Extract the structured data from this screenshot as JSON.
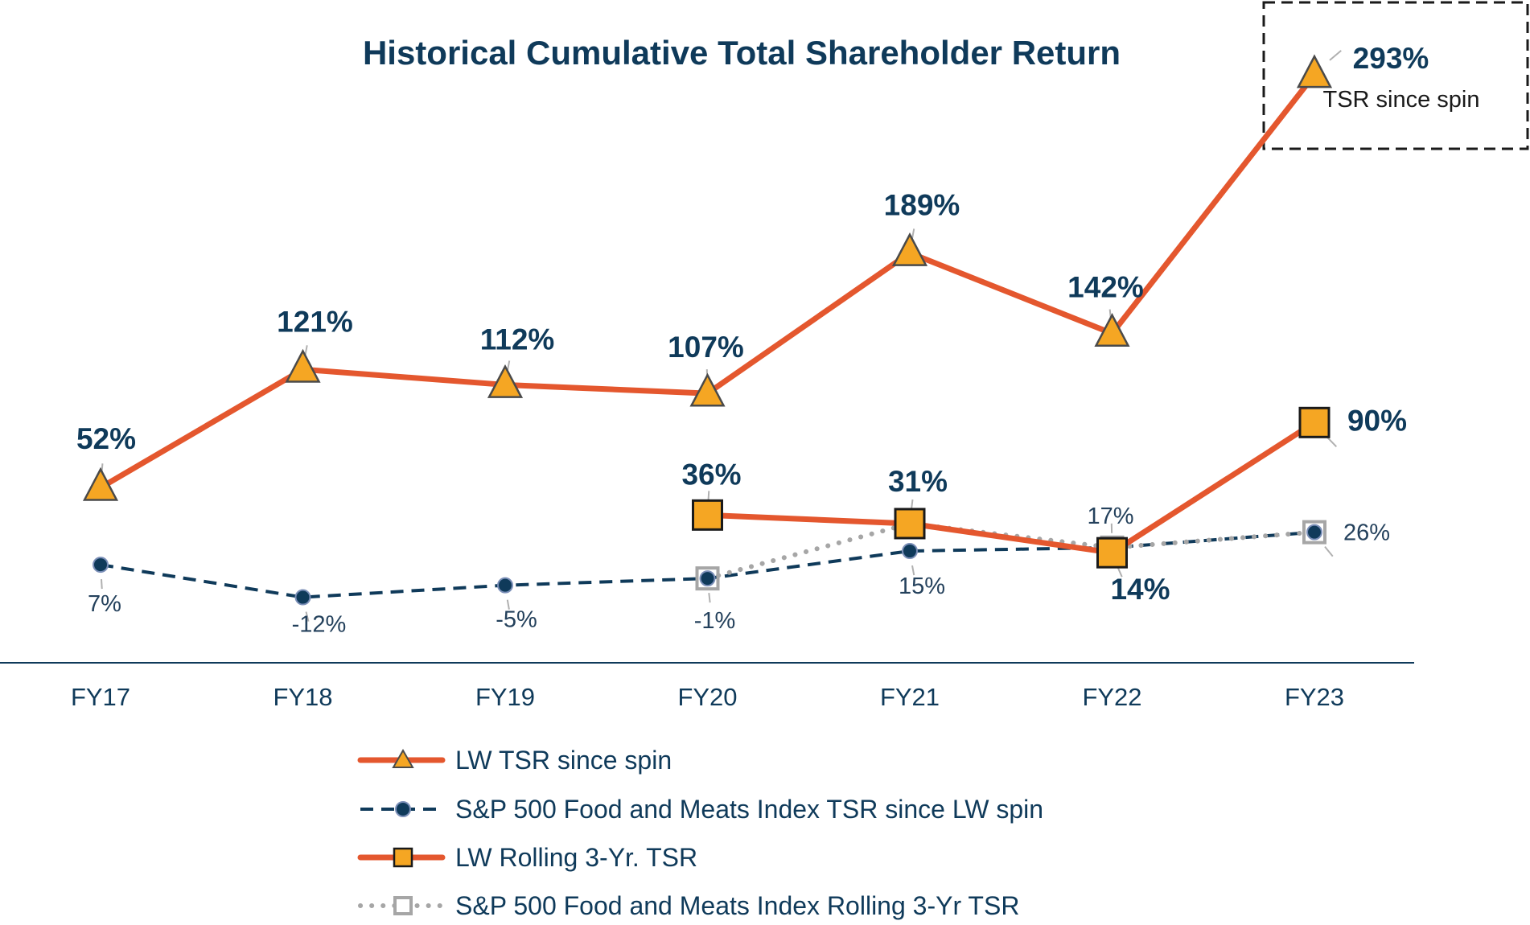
{
  "chart_data": {
    "type": "line",
    "title": "Historical Cumulative Total Shareholder Return",
    "categories": [
      "FY17",
      "FY18",
      "FY19",
      "FY20",
      "FY21",
      "FY22",
      "FY23"
    ],
    "series": [
      {
        "name": "LW TSR since spin",
        "values": [
          52,
          121,
          112,
          107,
          189,
          142,
          293
        ],
        "labels": [
          "52%",
          "121%",
          "112%",
          "107%",
          "189%",
          "142%",
          "293%"
        ],
        "color": "#e4572e",
        "marker": "triangle",
        "marker_fill": "#f5a623"
      },
      {
        "name": "S&P 500 Food and Meats Index TSR since LW spin",
        "values": [
          7,
          -12,
          -5,
          -1,
          15,
          17,
          26
        ],
        "labels": [
          "7%",
          "-12%",
          "-5%",
          "-1%",
          "15%",
          "",
          ""
        ],
        "color": "#0f3a5a",
        "marker": "circle",
        "marker_fill": "#0f3a5a"
      },
      {
        "name": "LW Rolling 3-Yr. TSR",
        "values": [
          null,
          null,
          null,
          36,
          31,
          14,
          90
        ],
        "labels": [
          "",
          "",
          "",
          "36%",
          "31%",
          "14%",
          "90%"
        ],
        "color": "#e4572e",
        "marker": "square",
        "marker_fill": "#f5a623"
      },
      {
        "name": "S&P 500 Food and Meats Index Rolling 3-Yr TSR",
        "values": [
          null,
          null,
          null,
          -1,
          31,
          17,
          26
        ],
        "labels": [
          "",
          "",
          "",
          "",
          "",
          "17%",
          "26%"
        ],
        "color": "#a6a6a6",
        "marker": "square-open",
        "marker_fill": "#ffffff"
      }
    ],
    "callout": {
      "value": "293%",
      "text": "TSR since spin"
    },
    "grid": false,
    "legend_position": "bottom"
  }
}
